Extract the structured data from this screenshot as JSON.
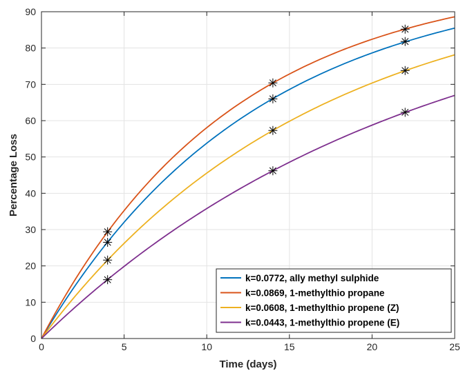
{
  "chart_data": {
    "type": "line",
    "title": "",
    "xlabel": "Time (days)",
    "ylabel": "Percentage Loss",
    "xlim": [
      0,
      25
    ],
    "ylim": [
      0,
      90
    ],
    "xticks": [
      0,
      5,
      10,
      15,
      20,
      25
    ],
    "yticks": [
      0,
      10,
      20,
      30,
      40,
      50,
      60,
      70,
      80,
      90
    ],
    "grid": true,
    "legend_position": "bottom-right",
    "marker_color": "#000000",
    "series": [
      {
        "name": "k=0.0772, ally methyl sulphide",
        "k": 0.0772,
        "color": "#0072BD",
        "curve": "100*(1-exp(-k*t))",
        "markers": [
          {
            "x": 4,
            "y": 26.5
          },
          {
            "x": 14,
            "y": 66.0
          },
          {
            "x": 22,
            "y": 81.8
          }
        ]
      },
      {
        "name": "k=0.0869, 1-methylthio propane",
        "k": 0.0869,
        "color": "#D95319",
        "curve": "100*(1-exp(-k*t))",
        "markers": [
          {
            "x": 4,
            "y": 29.4
          },
          {
            "x": 14,
            "y": 70.4
          },
          {
            "x": 22,
            "y": 85.2
          }
        ]
      },
      {
        "name": "k=0.0608, 1-methylthio propene (Z)",
        "k": 0.0608,
        "color": "#EDB120",
        "curve": "100*(1-exp(-k*t))",
        "markers": [
          {
            "x": 4,
            "y": 21.6
          },
          {
            "x": 14,
            "y": 57.3
          },
          {
            "x": 22,
            "y": 73.8
          }
        ]
      },
      {
        "name": "k=0.0443, 1-methylthio propene (E)",
        "k": 0.0443,
        "color": "#7E2F8E",
        "curve": "100*(1-exp(-k*t))",
        "markers": [
          {
            "x": 4,
            "y": 16.2
          },
          {
            "x": 14,
            "y": 46.2
          },
          {
            "x": 22,
            "y": 62.3
          }
        ]
      }
    ]
  }
}
